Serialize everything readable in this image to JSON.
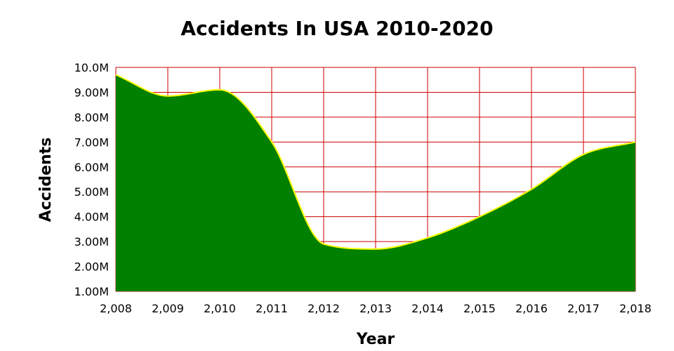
{
  "chart_data": {
    "type": "area",
    "title": "Accidents In USA 2010-2020",
    "xlabel": "Year",
    "ylabel": "Accidents",
    "x": [
      2008,
      2009,
      2010,
      2011,
      2012,
      2013,
      2014,
      2015,
      2016,
      2017,
      2018
    ],
    "x_tick_labels": [
      "2,008",
      "2,009",
      "2,010",
      "2,011",
      "2,012",
      "2,013",
      "2,014",
      "2,015",
      "2,016",
      "2,017",
      "2,018"
    ],
    "series": [
      {
        "values": [
          9.7,
          8.85,
          9.1,
          7.0,
          2.9,
          2.7,
          3.15,
          4.0,
          5.1,
          6.5,
          7.0
        ],
        "unit": "M"
      }
    ],
    "xlim": [
      2008,
      2018
    ],
    "ylim": [
      1,
      10
    ],
    "y_tick_values": [
      1,
      2,
      3,
      4,
      5,
      6,
      7,
      8,
      9,
      10
    ],
    "y_tick_labels": [
      "1.00M",
      "2.00M",
      "3.00M",
      "4.00M",
      "5.00M",
      "6.00M",
      "7.00M",
      "8.00M",
      "9.00M",
      "10.0M"
    ],
    "grid": true,
    "colors": {
      "fill": "#008000",
      "line": "#ffff00",
      "grid": "#cc0000"
    }
  }
}
